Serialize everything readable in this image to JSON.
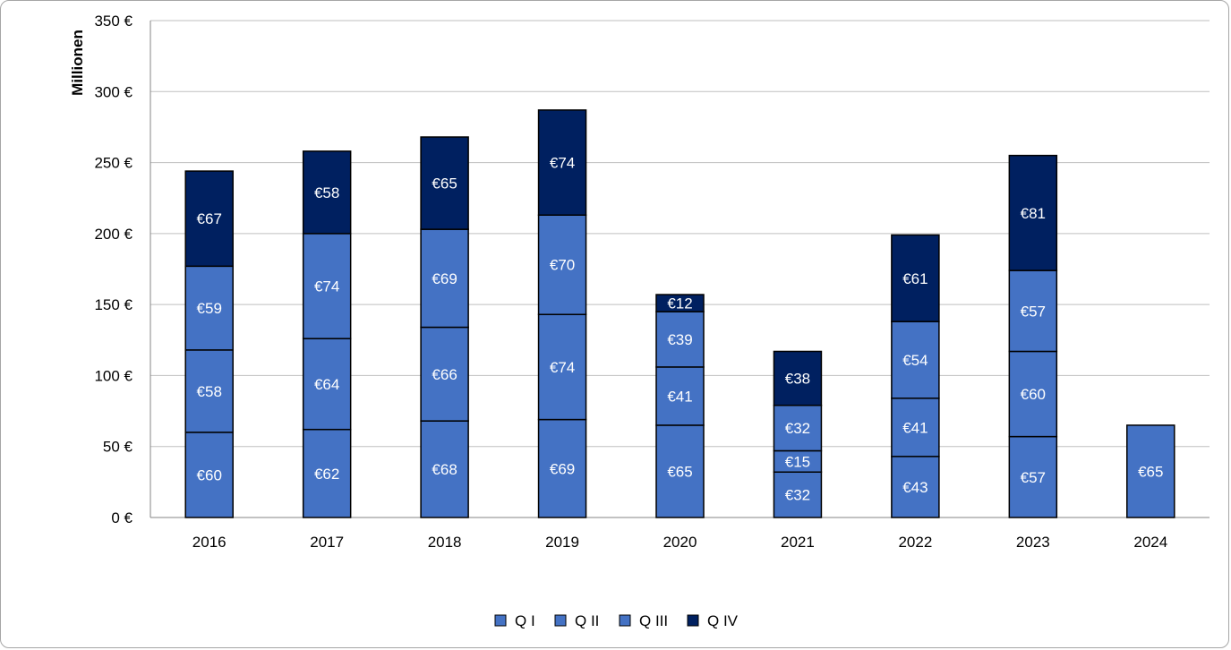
{
  "chart_data": {
    "type": "bar",
    "stacked": true,
    "title": "",
    "xlabel": "",
    "ylabel": "Millionen",
    "ylim": [
      0,
      350
    ],
    "yticks": [
      0,
      50,
      100,
      150,
      200,
      250,
      300,
      350
    ],
    "ytick_labels": [
      "0 €",
      "50 €",
      "100 €",
      "150 €",
      "200 €",
      "250 €",
      "300 €",
      "350 €"
    ],
    "grid": true,
    "legend_position": "bottom",
    "categories": [
      "2016",
      "2017",
      "2018",
      "2019",
      "2020",
      "2021",
      "2022",
      "2023",
      "2024"
    ],
    "series": [
      {
        "name": "Q I",
        "color": "#4472c4",
        "values": [
          60,
          62,
          68,
          69,
          65,
          32,
          43,
          57,
          65
        ],
        "labels": [
          "€60",
          "€62",
          "€68",
          "€69",
          "€65",
          "€32",
          "€43",
          "€57",
          "€65"
        ]
      },
      {
        "name": "Q II",
        "color": "#4472c4",
        "values": [
          58,
          64,
          66,
          74,
          41,
          15,
          41,
          60,
          null
        ],
        "labels": [
          "€58",
          "€64",
          "€66",
          "€74",
          "€41",
          "€15",
          "€41",
          "€60",
          null
        ]
      },
      {
        "name": "Q III",
        "color": "#4472c4",
        "values": [
          59,
          74,
          69,
          70,
          39,
          32,
          54,
          57,
          null
        ],
        "labels": [
          "€59",
          "€74",
          "€69",
          "€70",
          "€39",
          "€32",
          "€54",
          "€57",
          null
        ]
      },
      {
        "name": "Q IV",
        "color": "#002060",
        "values": [
          67,
          58,
          65,
          74,
          12,
          38,
          61,
          81,
          null
        ],
        "labels": [
          "€67",
          "€58",
          "€65",
          "€74",
          "€12",
          "€38",
          "€61",
          "€81",
          null
        ]
      }
    ]
  }
}
